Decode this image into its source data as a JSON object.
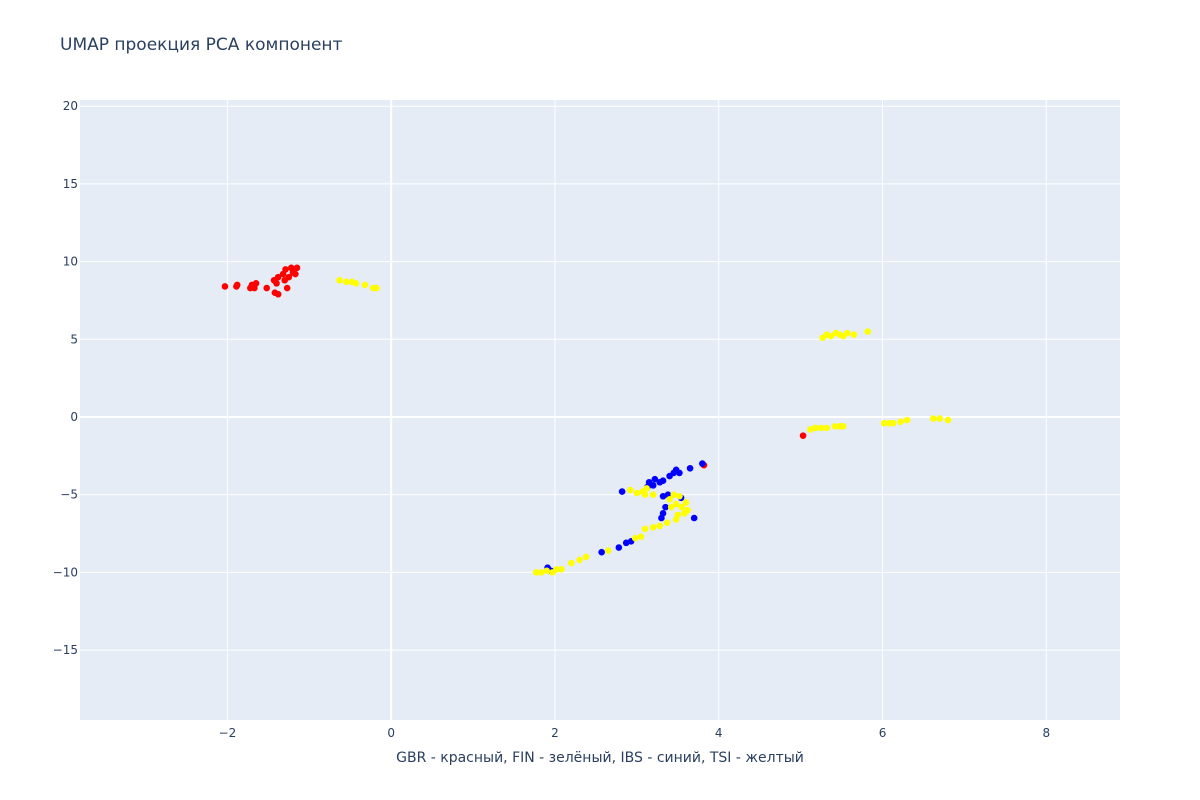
{
  "chart_data": {
    "type": "scatter",
    "title": "UMAP проекция PCA компонент",
    "xlabel": "GBR - красный, FIN - зелёный, IBS - синий, TSI - желтый",
    "ylabel": "",
    "xlim": [
      -3.8,
      8.9
    ],
    "ylim": [
      -19.5,
      20.4
    ],
    "xticks": [
      -2,
      0,
      2,
      4,
      6,
      8
    ],
    "xtick_labels": [
      "−2",
      "0",
      "2",
      "4",
      "6",
      "8"
    ],
    "yticks": [
      -15,
      -10,
      -5,
      0,
      5,
      10,
      15,
      20
    ],
    "ytick_labels": [
      "−15",
      "−10",
      "−5",
      "0",
      "5",
      "10",
      "15",
      "20"
    ],
    "grid": true,
    "legend": false,
    "plot_bg": "#e5ecf6",
    "grid_color": "#ffffff",
    "series": [
      {
        "color": "#ff0000",
        "points": [
          [
            -2.03,
            8.4
          ],
          [
            -1.89,
            8.4
          ],
          [
            -1.88,
            8.5
          ],
          [
            -1.72,
            8.3
          ],
          [
            -1.7,
            8.5
          ],
          [
            -1.67,
            8.3
          ],
          [
            -1.65,
            8.6
          ],
          [
            -1.52,
            8.3
          ],
          [
            -1.43,
            8.8
          ],
          [
            -1.4,
            8.6
          ],
          [
            -1.38,
            9.0
          ],
          [
            -1.42,
            8.0
          ],
          [
            -1.38,
            7.9
          ],
          [
            -1.32,
            9.2
          ],
          [
            -1.29,
            9.5
          ],
          [
            -1.27,
            8.3
          ],
          [
            -1.25,
            9.0
          ],
          [
            -1.22,
            9.6
          ],
          [
            -1.2,
            9.3
          ],
          [
            -1.17,
            9.2
          ],
          [
            -1.15,
            9.6
          ],
          [
            -1.3,
            8.8
          ],
          [
            5.03,
            -1.2
          ],
          [
            3.82,
            -3.1
          ]
        ]
      },
      {
        "color": "#0000ff",
        "points": [
          [
            1.91,
            -9.7
          ],
          [
            1.95,
            -9.9
          ],
          [
            2.57,
            -8.7
          ],
          [
            2.78,
            -8.4
          ],
          [
            2.87,
            -8.1
          ],
          [
            2.93,
            -8.0
          ],
          [
            2.82,
            -4.8
          ],
          [
            3.13,
            -4.5
          ],
          [
            3.15,
            -4.2
          ],
          [
            3.2,
            -4.4
          ],
          [
            3.22,
            -4.0
          ],
          [
            3.28,
            -4.2
          ],
          [
            3.32,
            -4.1
          ],
          [
            3.32,
            -5.1
          ],
          [
            3.38,
            -5.0
          ],
          [
            3.4,
            -3.8
          ],
          [
            3.45,
            -3.6
          ],
          [
            3.48,
            -3.4
          ],
          [
            3.52,
            -3.6
          ],
          [
            3.54,
            -5.2
          ],
          [
            3.35,
            -5.8
          ],
          [
            3.32,
            -6.2
          ],
          [
            3.3,
            -6.5
          ],
          [
            3.65,
            -3.3
          ],
          [
            3.7,
            -6.5
          ],
          [
            3.8,
            -3.0
          ]
        ]
      },
      {
        "color": "#ffff00",
        "points": [
          [
            -0.63,
            8.8
          ],
          [
            -0.55,
            8.7
          ],
          [
            -0.48,
            8.7
          ],
          [
            -0.43,
            8.6
          ],
          [
            -0.32,
            8.5
          ],
          [
            -0.22,
            8.3
          ],
          [
            -0.18,
            8.3
          ],
          [
            5.27,
            5.1
          ],
          [
            5.32,
            5.3
          ],
          [
            5.37,
            5.2
          ],
          [
            5.43,
            5.4
          ],
          [
            5.48,
            5.3
          ],
          [
            5.52,
            5.2
          ],
          [
            5.57,
            5.4
          ],
          [
            5.65,
            5.3
          ],
          [
            5.82,
            5.5
          ],
          [
            5.12,
            -0.8
          ],
          [
            5.18,
            -0.7
          ],
          [
            5.25,
            -0.7
          ],
          [
            5.32,
            -0.7
          ],
          [
            5.42,
            -0.6
          ],
          [
            5.48,
            -0.6
          ],
          [
            5.52,
            -0.6
          ],
          [
            6.02,
            -0.4
          ],
          [
            6.08,
            -0.4
          ],
          [
            6.13,
            -0.4
          ],
          [
            6.22,
            -0.3
          ],
          [
            6.3,
            -0.2
          ],
          [
            6.62,
            -0.1
          ],
          [
            6.7,
            -0.1
          ],
          [
            6.8,
            -0.2
          ],
          [
            1.77,
            -10.0
          ],
          [
            1.83,
            -10.0
          ],
          [
            1.9,
            -9.9
          ],
          [
            1.97,
            -10.0
          ],
          [
            2.02,
            -9.8
          ],
          [
            2.08,
            -9.8
          ],
          [
            2.2,
            -9.4
          ],
          [
            2.3,
            -9.2
          ],
          [
            2.38,
            -9.0
          ],
          [
            2.65,
            -8.6
          ],
          [
            2.98,
            -7.8
          ],
          [
            3.05,
            -7.7
          ],
          [
            3.1,
            -7.2
          ],
          [
            3.2,
            -7.1
          ],
          [
            3.28,
            -7.0
          ],
          [
            3.37,
            -6.8
          ],
          [
            3.48,
            -6.6
          ],
          [
            3.5,
            -6.3
          ],
          [
            3.58,
            -6.2
          ],
          [
            3.62,
            -6.0
          ],
          [
            3.42,
            -5.8
          ],
          [
            3.48,
            -5.6
          ],
          [
            3.55,
            -5.8
          ],
          [
            3.6,
            -5.5
          ],
          [
            3.4,
            -5.3
          ],
          [
            3.45,
            -5.0
          ],
          [
            3.52,
            -5.1
          ],
          [
            3.2,
            -5.0
          ],
          [
            2.92,
            -4.7
          ],
          [
            3.0,
            -4.9
          ],
          [
            3.07,
            -4.8
          ],
          [
            3.12,
            -4.6
          ],
          [
            3.1,
            -5.0
          ]
        ]
      }
    ]
  }
}
